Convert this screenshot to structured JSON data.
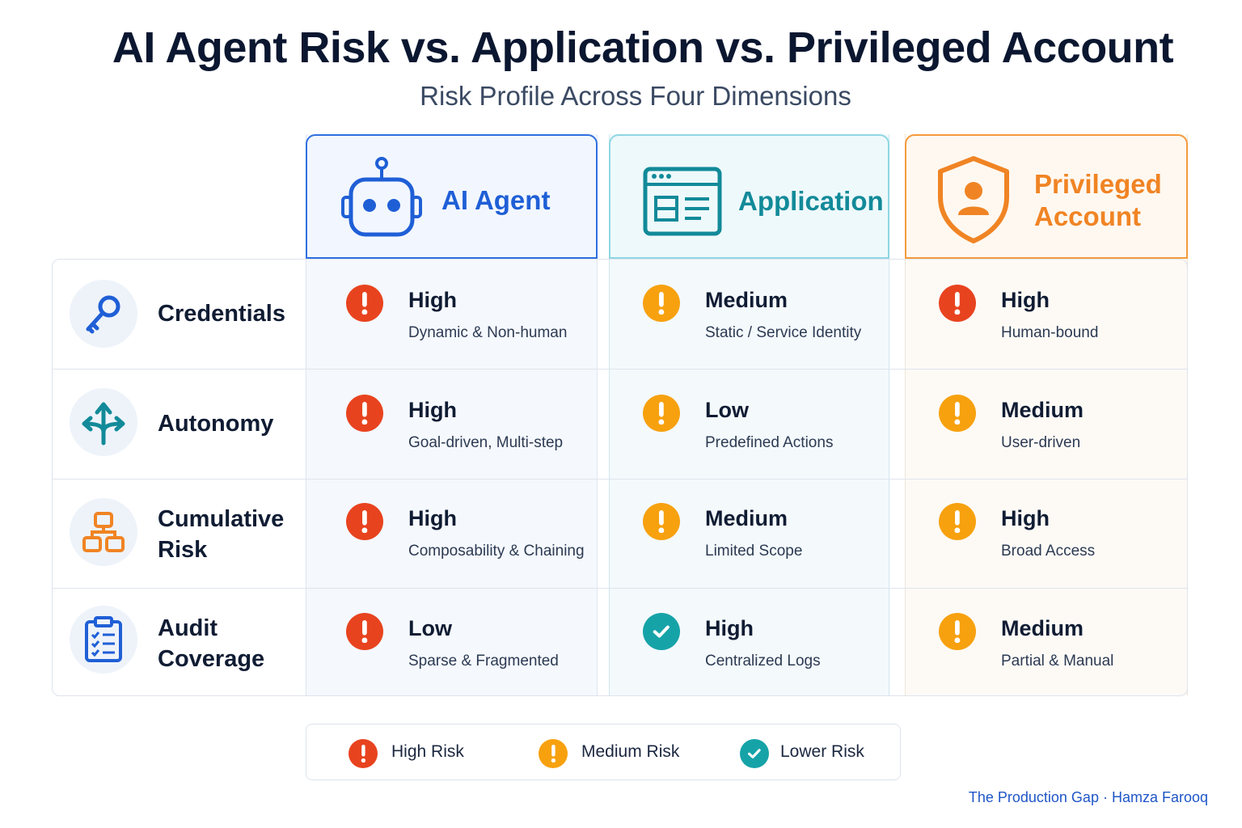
{
  "title": "AI Agent Risk vs. Application vs. Privileged Account",
  "subtitle": "Risk Profile Across Four Dimensions",
  "colors": {
    "ai_agent": "#2f6fe0",
    "application": "#128a99",
    "privileged": "#f08424",
    "high_risk": "#e8431f",
    "medium_risk": "#f7a10f",
    "lower_risk": "#16a3a8"
  },
  "columns": [
    {
      "label": "AI Agent",
      "icon": "robot-icon"
    },
    {
      "label": "Application",
      "icon": "app-window-icon"
    },
    {
      "label": "Privileged Account",
      "icon": "shield-user-icon"
    }
  ],
  "rows": [
    {
      "label": "Credentials",
      "icon": "key-icon",
      "cells": [
        {
          "level": "High",
          "desc": "Dynamic & Non-human",
          "risk": "high"
        },
        {
          "level": "Medium",
          "desc": "Static / Service Identity",
          "risk": "medium"
        },
        {
          "level": "High",
          "desc": "Human-bound",
          "risk": "high"
        }
      ]
    },
    {
      "label": "Autonomy",
      "icon": "branching-arrows-icon",
      "cells": [
        {
          "level": "High",
          "desc": "Goal-driven, Multi-step",
          "risk": "high"
        },
        {
          "level": "Low",
          "desc": "Predefined Actions",
          "risk": "medium"
        },
        {
          "level": "Medium",
          "desc": "User-driven",
          "risk": "medium"
        }
      ]
    },
    {
      "label": "Cumulative Risk",
      "icon": "hierarchy-icon",
      "cells": [
        {
          "level": "High",
          "desc": "Composability & Chaining",
          "risk": "high"
        },
        {
          "level": "Medium",
          "desc": "Limited Scope",
          "risk": "medium"
        },
        {
          "level": "High",
          "desc": "Broad Access",
          "risk": "medium"
        }
      ]
    },
    {
      "label": "Audit Coverage",
      "icon": "clipboard-checklist-icon",
      "cells": [
        {
          "level": "Low",
          "desc": "Sparse & Fragmented",
          "risk": "high"
        },
        {
          "level": "High",
          "desc": "Centralized Logs",
          "risk": "lower"
        },
        {
          "level": "Medium",
          "desc": "Partial & Manual",
          "risk": "medium"
        }
      ]
    }
  ],
  "legend": [
    {
      "label": "High Risk",
      "risk": "high"
    },
    {
      "label": "Medium Risk",
      "risk": "medium"
    },
    {
      "label": "Lower Risk",
      "risk": "lower"
    }
  ],
  "credit": "The Production Gap · Hamza Farooq"
}
